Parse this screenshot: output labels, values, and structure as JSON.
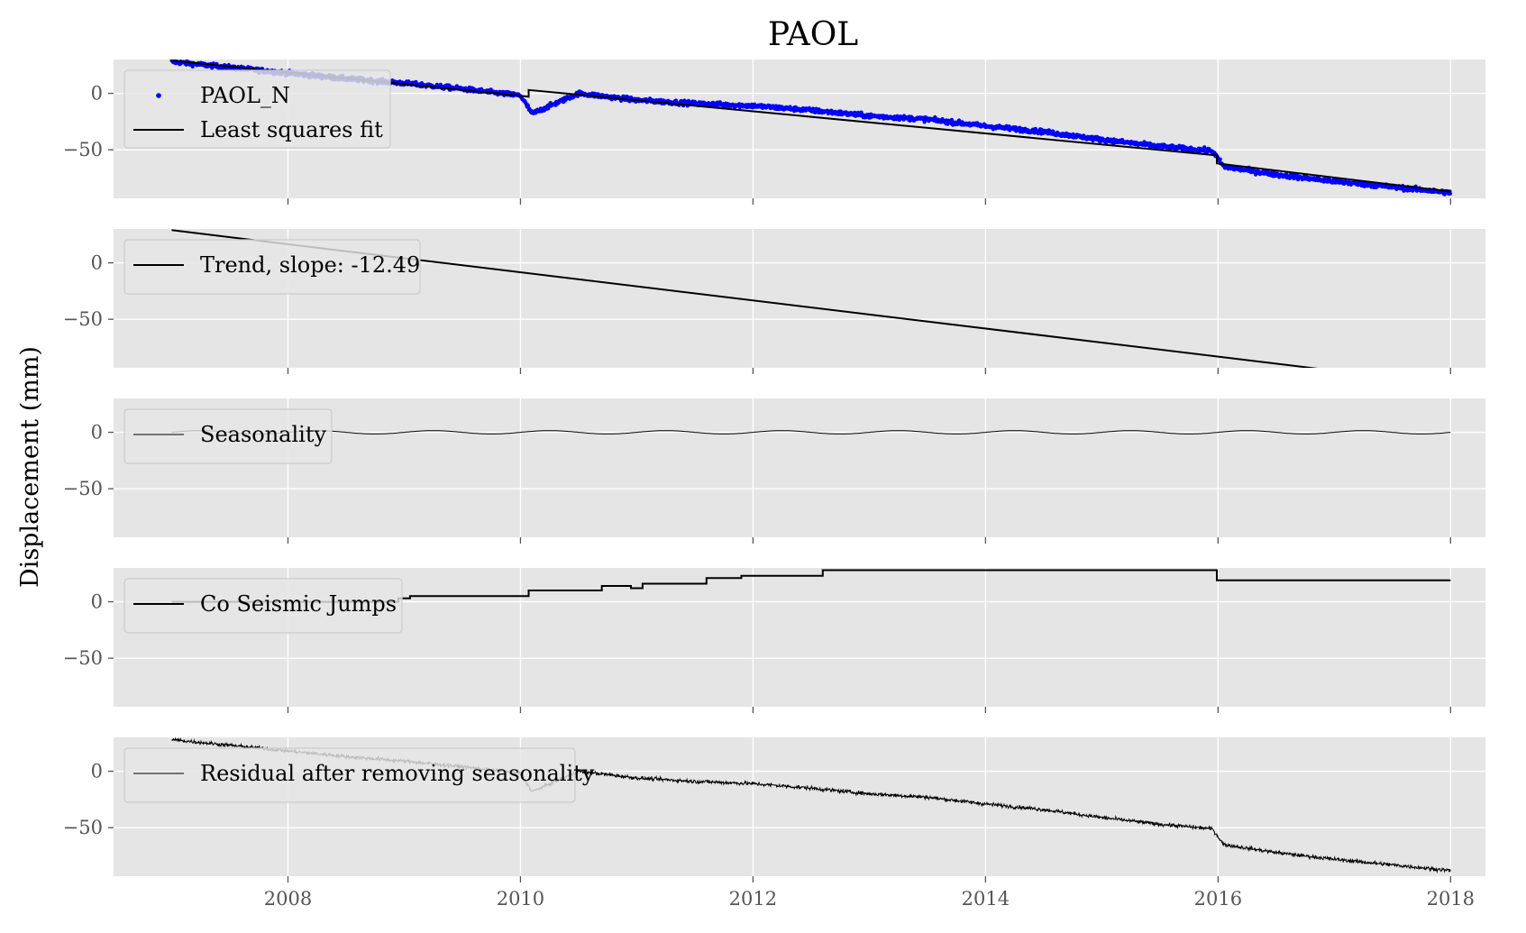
{
  "figure": {
    "title": "PAOL",
    "ylabel": "Displacement (mm)"
  },
  "colors": {
    "background": "#E5E5E5",
    "grid": "#FFFFFF",
    "data_points": "#0000FF",
    "fit_line": "#000000",
    "legend_bg": "#E5E5E5",
    "legend_border": "#CCCCCC",
    "tick_label": "#555555"
  },
  "chart_data": [
    {
      "type": "scatter",
      "panel": 1,
      "xlim": [
        2006.5,
        2018.3
      ],
      "ylim": [
        -93,
        30
      ],
      "xticks": [
        2008,
        2010,
        2012,
        2014,
        2016,
        2018
      ],
      "yticks": [
        0,
        -50
      ],
      "ytick_labels": [
        "0",
        "−50"
      ],
      "legend_placement": "upper-left",
      "grid": true,
      "series": [
        {
          "name": "PAOL_N",
          "kind": "points",
          "color": "#0000FF",
          "x": [
            2007.0,
            2007.5,
            2008.0,
            2008.5,
            2009.0,
            2009.5,
            2010.0,
            2010.1,
            2010.5,
            2011.0,
            2011.5,
            2012.0,
            2012.5,
            2013.0,
            2013.5,
            2014.0,
            2014.5,
            2015.0,
            2015.5,
            2015.95,
            2016.05,
            2016.5,
            2017.0,
            2017.5,
            2018.0
          ],
          "y": [
            28,
            23,
            18,
            13,
            9,
            4,
            -2,
            -18,
            0,
            -6,
            -9,
            -11,
            -15,
            -20,
            -23,
            -29,
            -34,
            -41,
            -47,
            -51,
            -65,
            -72,
            -78,
            -83,
            -88
          ]
        },
        {
          "name": "Least squares fit",
          "kind": "line",
          "color": "#000000",
          "x": [
            2007.0,
            2010.07,
            2010.07,
            2015.99,
            2015.99,
            2018.0
          ],
          "y": [
            29,
            -3,
            3,
            -55,
            -62,
            -87
          ]
        }
      ]
    },
    {
      "type": "line",
      "panel": 2,
      "xlim": [
        2006.5,
        2018.3
      ],
      "ylim": [
        -93,
        30
      ],
      "xticks": [
        2008,
        2010,
        2012,
        2014,
        2016,
        2018
      ],
      "yticks": [
        0,
        -50
      ],
      "ytick_labels": [
        "0",
        "−50"
      ],
      "legend_placement": "upper-left",
      "grid": true,
      "series": [
        {
          "name": "Trend, slope: -12.49",
          "color": "#000000",
          "x": [
            2007.0,
            2018.0
          ],
          "y": [
            29,
            -108
          ]
        }
      ]
    },
    {
      "type": "line",
      "panel": 3,
      "xlim": [
        2006.5,
        2018.3
      ],
      "ylim": [
        -93,
        30
      ],
      "xticks": [
        2008,
        2010,
        2012,
        2014,
        2016,
        2018
      ],
      "yticks": [
        0,
        -50
      ],
      "ytick_labels": [
        "0",
        "−50"
      ],
      "legend_placement": "upper-left",
      "grid": true,
      "seasonal": {
        "amplitude_mm": 1.5,
        "period_years": 1.0,
        "start": 2007.0,
        "end": 2018.0
      },
      "series": [
        {
          "name": "Seasonality",
          "color": "#000000"
        }
      ]
    },
    {
      "type": "line",
      "panel": 4,
      "xlim": [
        2006.5,
        2018.3
      ],
      "ylim": [
        -93,
        30
      ],
      "xticks": [
        2008,
        2010,
        2012,
        2014,
        2016,
        2018
      ],
      "yticks": [
        0,
        -50
      ],
      "ytick_labels": [
        "0",
        "−50"
      ],
      "legend_placement": "upper-left",
      "grid": true,
      "series": [
        {
          "name": "Co Seismic Jumps",
          "color": "#000000",
          "x": [
            2007.0,
            2008.95,
            2008.95,
            2009.05,
            2009.05,
            2010.07,
            2010.07,
            2010.7,
            2010.7,
            2010.95,
            2010.95,
            2011.05,
            2011.05,
            2011.6,
            2011.6,
            2011.9,
            2011.9,
            2012.6,
            2012.6,
            2015.99,
            2015.99,
            2018.0
          ],
          "y": [
            0,
            0,
            3,
            3,
            5,
            5,
            10,
            10,
            14,
            14,
            12,
            12,
            16,
            16,
            21,
            21,
            23,
            23,
            28,
            28,
            19,
            19
          ]
        }
      ]
    },
    {
      "type": "line",
      "panel": 5,
      "xlim": [
        2006.5,
        2018.3
      ],
      "ylim": [
        -93,
        30
      ],
      "xticks": [
        2008,
        2010,
        2012,
        2014,
        2016,
        2018
      ],
      "xtick_labels": [
        "2008",
        "2010",
        "2012",
        "2014",
        "2016",
        "2018"
      ],
      "yticks": [
        0,
        -50
      ],
      "ytick_labels": [
        "0",
        "−50"
      ],
      "legend_placement": "upper-left",
      "grid": true,
      "series": [
        {
          "name": "Residual after removing seasonality",
          "color": "#000000",
          "x": [
            2007.0,
            2007.5,
            2008.0,
            2008.5,
            2009.0,
            2009.5,
            2010.0,
            2010.1,
            2010.5,
            2011.0,
            2011.5,
            2012.0,
            2012.5,
            2013.0,
            2013.5,
            2014.0,
            2014.5,
            2015.0,
            2015.5,
            2015.95,
            2016.05,
            2016.5,
            2017.0,
            2017.5,
            2018.0
          ],
          "y": [
            28,
            23,
            18,
            13,
            9,
            4,
            -2,
            -18,
            0,
            -6,
            -9,
            -11,
            -15,
            -20,
            -23,
            -29,
            -34,
            -41,
            -47,
            -51,
            -65,
            -72,
            -78,
            -83,
            -88
          ]
        }
      ]
    }
  ]
}
